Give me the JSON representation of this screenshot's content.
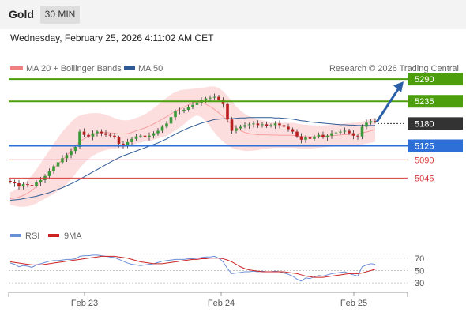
{
  "header": {
    "title": "Gold",
    "timeframe": "30 MIN"
  },
  "timestamp": "Wednesday, February 25, 2026 4:11:02 AM CET",
  "legend": {
    "bollinger": "MA 20 + Bollinger Bands",
    "ma50": "MA 50",
    "copyright": "Research © 2026 Trading Central",
    "rsi": "RSI",
    "rsi_ma": "9MA"
  },
  "colors": {
    "resistance": "#4d9e0c",
    "current": "#333333",
    "support_strong": "#2d6fd6",
    "support_weak": "#d93a3a",
    "bollinger": "#f7a0a0",
    "ma50": "#2e5a94",
    "rsi": "#6a8fd6",
    "rsi_ma": "#cc2222",
    "candle_up": "#3a9a3a",
    "candle_down": "#b82020",
    "arrow": "#2a5fa8"
  },
  "chart_data": [
    {
      "type": "candlestick",
      "y_range": [
        4948,
        5300
      ],
      "x_tick_labels": [
        "Feb 23",
        "Feb 24",
        "Feb 25"
      ],
      "levels": [
        {
          "value": 5290,
          "label": "5290",
          "kind": "resistance"
        },
        {
          "value": 5235,
          "label": "5235",
          "kind": "resistance"
        },
        {
          "value": 5180,
          "label": "5180",
          "kind": "current"
        },
        {
          "value": 5125,
          "label": "5125",
          "kind": "support_strong"
        },
        {
          "value": 5090,
          "label": "5090",
          "kind": "support_weak"
        },
        {
          "value": 5045,
          "label": "5045",
          "kind": "support_weak"
        }
      ],
      "closes": [
        5035,
        5032,
        5024,
        5030,
        5028,
        5025,
        5034,
        5040,
        5050,
        5062,
        5074,
        5084,
        5094,
        5102,
        5112,
        5122,
        5160,
        5152,
        5148,
        5156,
        5160,
        5156,
        5152,
        5150,
        5146,
        5130,
        5126,
        5134,
        5142,
        5148,
        5150,
        5146,
        5150,
        5156,
        5162,
        5172,
        5180,
        5196,
        5210,
        5212,
        5214,
        5220,
        5226,
        5232,
        5238,
        5242,
        5244,
        5246,
        5238,
        5228,
        5190,
        5162,
        5168,
        5172,
        5176,
        5178,
        5180,
        5176,
        5178,
        5174,
        5176,
        5180,
        5176,
        5172,
        5166,
        5160,
        5148,
        5140,
        5146,
        5142,
        5148,
        5152,
        5146,
        5150,
        5156,
        5158,
        5160,
        5162,
        5156,
        5150,
        5148,
        5172,
        5182,
        5186,
        5184
      ],
      "ma50": [
        4990,
        4991,
        4992,
        4994,
        4996,
        4998,
        5000,
        5003,
        5006,
        5009,
        5013,
        5017,
        5021,
        5026,
        5031,
        5036,
        5042,
        5048,
        5054,
        5060,
        5066,
        5072,
        5078,
        5084,
        5090,
        5095,
        5100,
        5104,
        5108,
        5112,
        5116,
        5120,
        5124,
        5128,
        5132,
        5137,
        5142,
        5148,
        5154,
        5159,
        5164,
        5169,
        5173,
        5177,
        5181,
        5184,
        5187,
        5190,
        5191,
        5192,
        5192,
        5192,
        5193,
        5194,
        5194,
        5195,
        5195,
        5195,
        5195,
        5195,
        5195,
        5194,
        5194,
        5193,
        5192,
        5191,
        5189,
        5187,
        5186,
        5184,
        5183,
        5182,
        5181,
        5180,
        5179,
        5178,
        5177,
        5177,
        5176,
        5176,
        5175,
        5175,
        5175,
        5175,
        5175
      ],
      "bollinger_upper": [
        5010,
        5015,
        5022,
        5030,
        5040,
        5052,
        5066,
        5082,
        5098,
        5114,
        5130,
        5145,
        5160,
        5172,
        5184,
        5194,
        5200,
        5203,
        5205,
        5206,
        5206,
        5205,
        5202,
        5198,
        5194,
        5190,
        5188,
        5188,
        5190,
        5194,
        5198,
        5203,
        5210,
        5218,
        5226,
        5236,
        5244,
        5252,
        5258,
        5262,
        5264,
        5265,
        5266,
        5267,
        5268,
        5270,
        5272,
        5272,
        5268,
        5260,
        5248,
        5236,
        5222,
        5212,
        5204,
        5198,
        5194,
        5190,
        5188,
        5186,
        5184,
        5183,
        5182,
        5182,
        5182,
        5182,
        5180,
        5178,
        5177,
        5176,
        5175,
        5175,
        5175,
        5176,
        5177,
        5178,
        5179,
        5180,
        5181,
        5182,
        5183,
        5185,
        5188,
        5192,
        5195
      ],
      "bollinger_lower": [
        4978,
        4976,
        4974,
        4974,
        4975,
        4978,
        4982,
        4988,
        4994,
        5000,
        5006,
        5013,
        5020,
        5030,
        5042,
        5055,
        5070,
        5082,
        5092,
        5100,
        5106,
        5111,
        5114,
        5116,
        5118,
        5119,
        5120,
        5122,
        5126,
        5130,
        5133,
        5135,
        5137,
        5140,
        5143,
        5146,
        5150,
        5156,
        5163,
        5170,
        5178,
        5188,
        5196,
        5200,
        5196,
        5186,
        5172,
        5158,
        5145,
        5135,
        5127,
        5120,
        5116,
        5114,
        5112,
        5112,
        5113,
        5114,
        5116,
        5118,
        5119,
        5120,
        5120,
        5120,
        5120,
        5120,
        5119,
        5118,
        5118,
        5118,
        5119,
        5120,
        5121,
        5122,
        5123,
        5124,
        5124,
        5125,
        5125,
        5125,
        5126,
        5128,
        5130,
        5132,
        5135
      ]
    },
    {
      "type": "line",
      "title": "RSI",
      "y_ticks": [
        30,
        50,
        70
      ],
      "y_range": [
        20,
        85
      ],
      "series": [
        {
          "name": "RSI",
          "values": [
            62,
            60,
            56,
            58,
            57,
            55,
            59,
            61,
            63,
            65,
            66,
            66,
            67,
            68,
            68,
            69,
            73,
            74,
            74,
            75,
            75,
            74,
            73,
            72,
            71,
            68,
            65,
            62,
            60,
            59,
            58,
            59,
            60,
            61,
            63,
            65,
            66,
            67,
            68,
            68,
            68,
            69,
            69,
            70,
            71,
            72,
            72,
            73,
            70,
            64,
            53,
            45,
            46,
            47,
            48,
            48,
            49,
            48,
            49,
            48,
            48,
            49,
            48,
            46,
            44,
            41,
            36,
            33,
            38,
            37,
            40,
            42,
            41,
            43,
            45,
            46,
            47,
            48,
            45,
            43,
            41,
            56,
            59,
            61,
            60
          ]
        },
        {
          "name": "9MA",
          "values": [
            64,
            63,
            62,
            61,
            60,
            59,
            59,
            59,
            60,
            61,
            62,
            63,
            64,
            65,
            66,
            67,
            68,
            69,
            70,
            71,
            72,
            73,
            73,
            73,
            73,
            72,
            71,
            70,
            68,
            66,
            64,
            63,
            62,
            61,
            61,
            61,
            62,
            63,
            64,
            65,
            66,
            67,
            68,
            68,
            69,
            69,
            70,
            70,
            70,
            69,
            67,
            64,
            60,
            56,
            53,
            51,
            50,
            49,
            48,
            48,
            48,
            48,
            48,
            48,
            47,
            46,
            45,
            43,
            41,
            40,
            39,
            39,
            39,
            40,
            41,
            42,
            43,
            44,
            45,
            45,
            45,
            46,
            48,
            50,
            52
          ]
        }
      ]
    }
  ]
}
